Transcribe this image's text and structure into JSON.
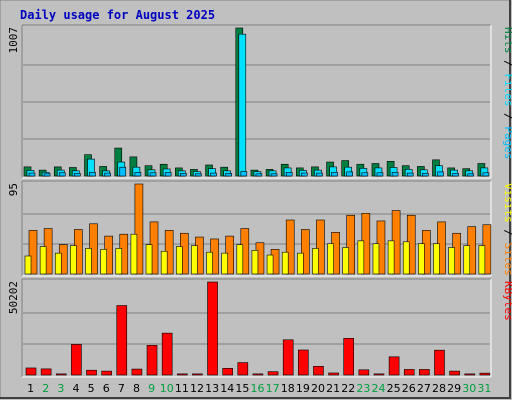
{
  "colors": {
    "background": "#c0c0c0",
    "panel": "#c0c0c0",
    "border_dark": "#808080",
    "border_light": "#ffffff",
    "grid": "#808080",
    "title": "#0000c0",
    "hits": "#008040",
    "files": "#00e0ff",
    "pages": "#00c0ff",
    "visits": "#ff8000",
    "sites": "#ffff00",
    "kbytes": "#ff0000",
    "weekend_label": "#00a040",
    "weekday_label": "#000000"
  },
  "chart_data": {
    "type": "bar",
    "title": "Daily usage for August 2025",
    "categories": [
      "1",
      "2",
      "3",
      "4",
      "5",
      "6",
      "7",
      "8",
      "9",
      "10",
      "11",
      "12",
      "13",
      "14",
      "15",
      "16",
      "17",
      "18",
      "19",
      "20",
      "21",
      "22",
      "23",
      "24",
      "25",
      "26",
      "27",
      "28",
      "29",
      "30",
      "31"
    ],
    "weekend_days": [
      "2",
      "3",
      "9",
      "10",
      "16",
      "17",
      "23",
      "24",
      "30",
      "31"
    ],
    "panels": [
      {
        "name": "hits_files_pages",
        "ymax_label": "1007",
        "ylim": [
          0,
          1007
        ],
        "right_label_parts": [
          {
            "text": "Pages",
            "color_key": "pages"
          },
          {
            "text": " / ",
            "color_key": "weekday_label"
          },
          {
            "text": "Files",
            "color_key": "files"
          },
          {
            "text": " / ",
            "color_key": "weekday_label"
          },
          {
            "text": "Hits",
            "color_key": "hits"
          }
        ],
        "series": [
          {
            "name": "Hits",
            "color_key": "hits",
            "values": [
              62,
              40,
              62,
              58,
              145,
              65,
              190,
              130,
              70,
              80,
              55,
              45,
              75,
              60,
              1007,
              40,
              45,
              80,
              55,
              62,
              95,
              105,
              80,
              85,
              100,
              70,
              65,
              110,
              55,
              50,
              85
            ]
          },
          {
            "name": "Files",
            "color_key": "files",
            "values": [
              38,
              25,
              40,
              35,
              115,
              35,
              95,
              60,
              42,
              48,
              35,
              30,
              50,
              35,
              965,
              30,
              35,
              55,
              38,
              40,
              62,
              60,
              52,
              55,
              58,
              45,
              42,
              70,
              40,
              35,
              55
            ]
          },
          {
            "name": "Pages",
            "color_key": "pages",
            "values": [
              20,
              15,
              22,
              18,
              25,
              20,
              60,
              25,
              22,
              24,
              18,
              15,
              20,
              18,
              30,
              15,
              15,
              25,
              20,
              20,
              25,
              28,
              22,
              22,
              25,
              20,
              18,
              28,
              18,
              15,
              22
            ]
          }
        ]
      },
      {
        "name": "visits_sites",
        "ymax_label": "95",
        "ylim": [
          0,
          95
        ],
        "right_label_parts": [
          {
            "text": "Sites",
            "color_key": "visits"
          },
          {
            "text": " / ",
            "color_key": "weekday_label"
          },
          {
            "text": "Visits",
            "color_key": "sites"
          }
        ],
        "series": [
          {
            "name": "Visits",
            "color_key": "visits",
            "values": [
              46,
              48,
              31,
              47,
              53,
              40,
              42,
              95,
              55,
              46,
              43,
              39,
              37,
              40,
              48,
              33,
              26,
              57,
              47,
              57,
              44,
              62,
              64,
              56,
              67,
              62,
              46,
              55,
              43,
              50,
              52
            ]
          },
          {
            "name": "Sites",
            "color_key": "sites",
            "values": [
              19,
              29,
              22,
              30,
              27,
              26,
              27,
              42,
              31,
              24,
              29,
              30,
              23,
              22,
              31,
              25,
              20,
              23,
              22,
              27,
              32,
              28,
              35,
              32,
              35,
              34,
              32,
              32,
              28,
              30,
              30
            ]
          }
        ]
      },
      {
        "name": "kbytes",
        "ymax_label": "50202",
        "ylim": [
          0,
          50202
        ],
        "right_label_parts": [
          {
            "text": "KBytes",
            "color_key": "kbytes"
          }
        ],
        "series": [
          {
            "name": "KBytes",
            "color_key": "kbytes",
            "values": [
              3800,
              3300,
              600,
              16500,
              2600,
              2100,
              37500,
              3200,
              16000,
              22600,
              600,
              600,
              50202,
              3600,
              6700,
              600,
              1800,
              19000,
              13500,
              4700,
              1100,
              19800,
              2800,
              600,
              9800,
              3000,
              3000,
              13400,
              2100,
              600,
              1000
            ]
          }
        ]
      }
    ]
  }
}
